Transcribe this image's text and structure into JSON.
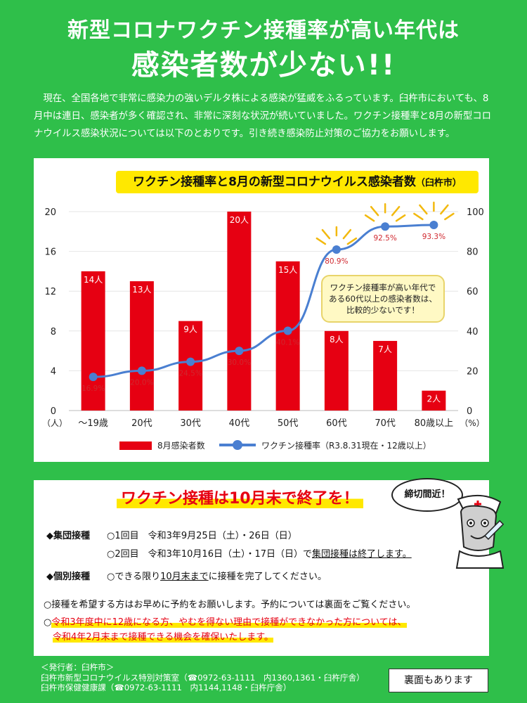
{
  "header": {
    "title_line1": "新型コロナワクチン接種率が高い年代は",
    "title_line2": "感染者数が少ない!!"
  },
  "intro": "現在、全国各地で非常に感染力の強いデルタ株による感染が猛威をふるっています。臼杵市においても、8月中は連日、感染者が多く確認され、非常に深刻な状況が続いていました。ワクチン接種率と8月の新型コロナウイルス感染状況については以下のとおりです。引き続き感染防止対策のご協力をお願いします。",
  "chart": {
    "title_main": "ワクチン接種率と8月の新型コロナウイルス感染者数",
    "title_sub": "（臼杵市）",
    "callout": [
      "ワクチン接種率が高い年代で",
      "ある60代以上の感染者数は、",
      "比較的少ないです！"
    ],
    "left_unit": "（人）",
    "right_unit": "（%）",
    "legend_bar": "8月感染者数",
    "legend_line": "ワクチン接種率（R3.8.31現在・12歳以上）"
  },
  "chart_data": {
    "type": "bar",
    "title": "ワクチン接種率と8月の新型コロナウイルス感染者数（臼杵市）",
    "categories": [
      "～19歳",
      "20代",
      "30代",
      "40代",
      "50代",
      "60代",
      "70代",
      "80歳以上"
    ],
    "series": [
      {
        "name": "8月感染者数",
        "type": "bar",
        "axis": "left",
        "values": [
          14,
          13,
          9,
          20,
          15,
          8,
          7,
          2
        ],
        "labels": [
          "14人",
          "13人",
          "9人",
          "20人",
          "15人",
          "8人",
          "7人",
          "2人"
        ]
      },
      {
        "name": "ワクチン接種率（R3.8.31現在・12歳以上）",
        "type": "line",
        "axis": "right",
        "values": [
          16.9,
          20.0,
          24.5,
          30.0,
          40.1,
          80.9,
          92.5,
          93.3
        ],
        "labels": [
          "16.9%",
          "20.0%",
          "24.5%",
          "30.0%",
          "40.1%",
          "80.9%",
          "92.5%",
          "93.3%"
        ]
      }
    ],
    "y_left": {
      "range": [
        0,
        20
      ],
      "ticks": [
        "0",
        "4",
        "8",
        "12",
        "16",
        "20"
      ]
    },
    "y_right": {
      "range": [
        0,
        100
      ],
      "ticks": [
        "0",
        "20",
        "40",
        "60",
        "80",
        "100"
      ]
    },
    "colors": {
      "bar": "#e60012",
      "line": "#4a7fd1",
      "line_label": "#d0282f"
    },
    "legend": "bottom"
  },
  "info": {
    "heading": "ワクチン接種は10月末で終了を！",
    "group_label": "◆集団接種",
    "group_line1": "○1回目　令和3年9月25日（土）・26日（日）",
    "group_line2_a": "○2回目　令和3年10月16日（土）・17日（日）で",
    "group_line2_b": "集団接種は終了します。",
    "individual_label": "◆個別接種",
    "individual_a": "○できる限り",
    "individual_b": "10月末まで",
    "individual_c": "に接種を完了してください。",
    "note1": "○接種を希望する方はお早めに予約をお願いします。予約については裏面をご覧ください。",
    "note2_a": "令和3年度中に12歳になる方、やむを得ない理由で接種ができなかった方については、",
    "note2_b": "令和4年2月末まで接種できる機会を確保いたします。"
  },
  "bubble": "締切間近！",
  "footer": {
    "publisher": "＜発行者：臼杵市＞",
    "line1": "臼杵市新型コロナウイルス特別対策室（☎0972-63-1111　内1360,1361・臼杵庁舎）",
    "line2": "臼杵市保健健康課（☎0972-63-1111　内1144,1148・臼杵庁舎）"
  },
  "back_note": "裏面もあります"
}
